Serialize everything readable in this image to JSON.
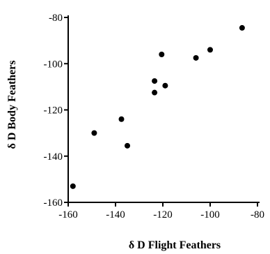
{
  "chart_data": {
    "type": "scatter",
    "title": "",
    "xlabel": "δ D Flight Feathers",
    "ylabel": "δ D Body Feathers",
    "xlim": [
      -160,
      -80
    ],
    "ylim": [
      -160,
      -80
    ],
    "xticks": [
      "-160",
      "-140",
      "-120",
      "-100",
      "-80"
    ],
    "yticks": [
      "-80",
      "-100",
      "-120",
      "-140",
      "-160"
    ],
    "grid": false,
    "legend": "none",
    "point_color": "#000000",
    "points": [
      {
        "x": -158,
        "y": -153
      },
      {
        "x": -149,
        "y": -130
      },
      {
        "x": -137.5,
        "y": -124
      },
      {
        "x": -135,
        "y": -135.5
      },
      {
        "x": -123.5,
        "y": -107.5
      },
      {
        "x": -123.5,
        "y": -112.5
      },
      {
        "x": -120.5,
        "y": -96
      },
      {
        "x": -119,
        "y": -109.5
      },
      {
        "x": -106,
        "y": -97.5
      },
      {
        "x": -100,
        "y": -94
      },
      {
        "x": -86.5,
        "y": -84.5
      }
    ]
  }
}
